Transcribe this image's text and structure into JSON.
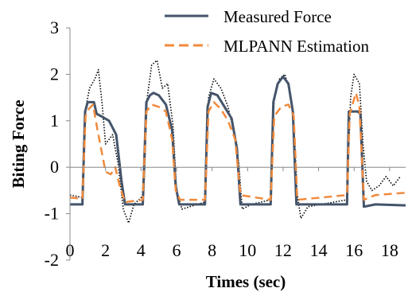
{
  "chart_data": {
    "type": "line",
    "title": "",
    "xlabel": "Times (sec)",
    "ylabel": "Biting Force",
    "xlim": [
      0,
      18.9
    ],
    "ylim": [
      -2,
      3
    ],
    "x_ticks": [
      "0",
      "2",
      "4",
      "6",
      "8",
      "10",
      "12",
      "14",
      "16",
      "18"
    ],
    "y_ticks": [
      "-2",
      "-1",
      "0",
      "1",
      "2",
      "3"
    ],
    "grid": false,
    "legend_position": "top-right",
    "series": [
      {
        "name": "Measured Force",
        "color": "#44546a",
        "style": "solid",
        "points": [
          [
            0,
            -0.8
          ],
          [
            0.7,
            -0.8
          ],
          [
            0.85,
            1.2
          ],
          [
            1.0,
            1.4
          ],
          [
            1.35,
            1.4
          ],
          [
            1.5,
            1.15
          ],
          [
            1.75,
            1.1
          ],
          [
            2.2,
            1.0
          ],
          [
            2.6,
            0.7
          ],
          [
            2.9,
            -0.3
          ],
          [
            3.1,
            -0.8
          ],
          [
            4.1,
            -0.8
          ],
          [
            4.3,
            1.4
          ],
          [
            4.5,
            1.55
          ],
          [
            4.7,
            1.6
          ],
          [
            5.0,
            1.55
          ],
          [
            5.4,
            1.35
          ],
          [
            5.75,
            0.8
          ],
          [
            5.95,
            -0.4
          ],
          [
            6.15,
            -0.8
          ],
          [
            7.6,
            -0.8
          ],
          [
            7.75,
            1.3
          ],
          [
            7.95,
            1.6
          ],
          [
            8.3,
            1.55
          ],
          [
            8.7,
            1.3
          ],
          [
            9.1,
            1.05
          ],
          [
            9.4,
            0.4
          ],
          [
            9.6,
            -0.8
          ],
          [
            11.3,
            -0.8
          ],
          [
            11.45,
            1.4
          ],
          [
            11.7,
            1.8
          ],
          [
            12.0,
            1.95
          ],
          [
            12.3,
            1.8
          ],
          [
            12.55,
            1.2
          ],
          [
            12.75,
            -0.8
          ],
          [
            15.6,
            -0.8
          ],
          [
            15.7,
            1.2
          ],
          [
            16.2,
            1.2
          ],
          [
            16.35,
            1.15
          ],
          [
            16.55,
            -0.85
          ],
          [
            17.2,
            -0.8
          ],
          [
            18.9,
            -0.82
          ]
        ]
      },
      {
        "name": "MLPANN Estimation",
        "color": "#f08a3c",
        "style": "dashed",
        "points": [
          [
            0,
            -0.65
          ],
          [
            0.7,
            -0.68
          ],
          [
            0.88,
            1.1
          ],
          [
            1.05,
            1.25
          ],
          [
            1.3,
            1.35
          ],
          [
            1.55,
            0.8
          ],
          [
            1.75,
            0.4
          ],
          [
            2.0,
            -0.1
          ],
          [
            2.3,
            -0.15
          ],
          [
            2.55,
            0.0
          ],
          [
            2.8,
            -0.4
          ],
          [
            3.1,
            -0.75
          ],
          [
            4.1,
            -0.7
          ],
          [
            4.3,
            1.2
          ],
          [
            4.6,
            1.35
          ],
          [
            5.0,
            1.3
          ],
          [
            5.4,
            1.2
          ],
          [
            5.75,
            0.6
          ],
          [
            5.95,
            -0.5
          ],
          [
            6.2,
            -0.7
          ],
          [
            7.6,
            -0.7
          ],
          [
            7.8,
            1.2
          ],
          [
            8.1,
            1.4
          ],
          [
            8.5,
            1.25
          ],
          [
            8.9,
            1.0
          ],
          [
            9.3,
            0.6
          ],
          [
            9.6,
            -0.6
          ],
          [
            11.3,
            -0.7
          ],
          [
            11.5,
            1.1
          ],
          [
            11.9,
            1.3
          ],
          [
            12.3,
            1.35
          ],
          [
            12.6,
            1.1
          ],
          [
            12.8,
            -0.7
          ],
          [
            15.6,
            -0.6
          ],
          [
            15.75,
            1.15
          ],
          [
            16.1,
            1.6
          ],
          [
            16.3,
            1.3
          ],
          [
            16.55,
            -0.7
          ],
          [
            17.2,
            -0.6
          ],
          [
            18.9,
            -0.55
          ]
        ]
      },
      {
        "name": "",
        "color": "#000000",
        "style": "dotted-scatter",
        "points": [
          [
            0,
            -0.6
          ],
          [
            0.7,
            -0.65
          ],
          [
            0.9,
            1.3
          ],
          [
            1.1,
            1.7
          ],
          [
            1.4,
            1.9
          ],
          [
            1.6,
            2.1
          ],
          [
            1.8,
            1.4
          ],
          [
            2.0,
            0.5
          ],
          [
            2.4,
            0.7
          ],
          [
            2.7,
            0.1
          ],
          [
            3.0,
            -0.9
          ],
          [
            3.3,
            -1.2
          ],
          [
            3.6,
            -0.8
          ],
          [
            4.15,
            -0.6
          ],
          [
            4.35,
            1.5
          ],
          [
            4.6,
            2.2
          ],
          [
            4.9,
            2.3
          ],
          [
            5.2,
            1.7
          ],
          [
            5.5,
            1.8
          ],
          [
            5.8,
            0.9
          ],
          [
            6.0,
            -0.5
          ],
          [
            6.3,
            -0.9
          ],
          [
            7.6,
            -0.75
          ],
          [
            7.8,
            1.5
          ],
          [
            8.1,
            1.9
          ],
          [
            8.5,
            1.7
          ],
          [
            8.9,
            1.3
          ],
          [
            9.2,
            0.8
          ],
          [
            9.5,
            0.1
          ],
          [
            9.7,
            -0.9
          ],
          [
            10.2,
            -0.8
          ],
          [
            11.3,
            -0.7
          ],
          [
            11.5,
            1.5
          ],
          [
            11.8,
            1.9
          ],
          [
            12.1,
            2.0
          ],
          [
            12.4,
            1.6
          ],
          [
            12.6,
            1.0
          ],
          [
            12.8,
            -0.6
          ],
          [
            13.0,
            -1.1
          ],
          [
            13.4,
            -0.85
          ],
          [
            15.6,
            -0.7
          ],
          [
            15.8,
            1.5
          ],
          [
            16.0,
            2.0
          ],
          [
            16.3,
            1.8
          ],
          [
            16.5,
            0.5
          ],
          [
            16.7,
            -0.3
          ],
          [
            17.0,
            -0.5
          ],
          [
            17.4,
            -0.4
          ],
          [
            17.8,
            -0.2
          ],
          [
            18.2,
            -0.4
          ],
          [
            18.6,
            -0.2
          ]
        ]
      }
    ]
  }
}
